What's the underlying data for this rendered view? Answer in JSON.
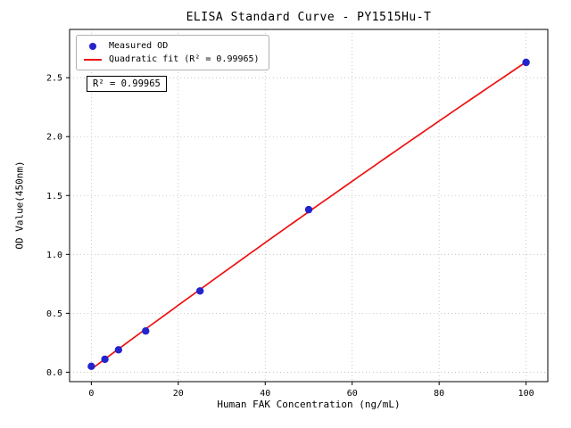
{
  "chart_data": {
    "type": "scatter",
    "title": "ELISA Standard Curve - PY1515Hu-T",
    "xlabel": "Human FAK Concentration (ng/mL)",
    "ylabel": "OD Value(450nm)",
    "xlim": [
      -5,
      105
    ],
    "ylim": [
      -0.08,
      2.91
    ],
    "xticks": [
      0,
      20,
      40,
      60,
      80,
      100
    ],
    "xtick_labels": [
      "0",
      "20",
      "40",
      "60",
      "80",
      "100"
    ],
    "yticks": [
      0,
      0.5,
      1,
      1.5,
      2,
      2.5
    ],
    "ytick_labels": [
      "0.0",
      "0.5",
      "1.0",
      "1.5",
      "2.0",
      "2.5"
    ],
    "grid": true,
    "legend_position": "upper left",
    "annotation": "R² = 0.99965",
    "colors": {
      "measured": "#2424cd",
      "fit": "#ee1111",
      "grid": "#bbbbbb",
      "axis": "#000000"
    },
    "series": [
      {
        "name": "Measured OD",
        "type": "scatter",
        "color": "#2424cd",
        "x": [
          0,
          3.125,
          6.25,
          12.5,
          25,
          50,
          100
        ],
        "y": [
          0.05,
          0.11,
          0.19,
          0.35,
          0.69,
          1.38,
          2.63
        ]
      },
      {
        "name": "Quadratic fit (R² = 0.99965)",
        "type": "line",
        "fit": "quadratic",
        "r_squared": 0.99965,
        "color": "#ee1111"
      }
    ]
  }
}
